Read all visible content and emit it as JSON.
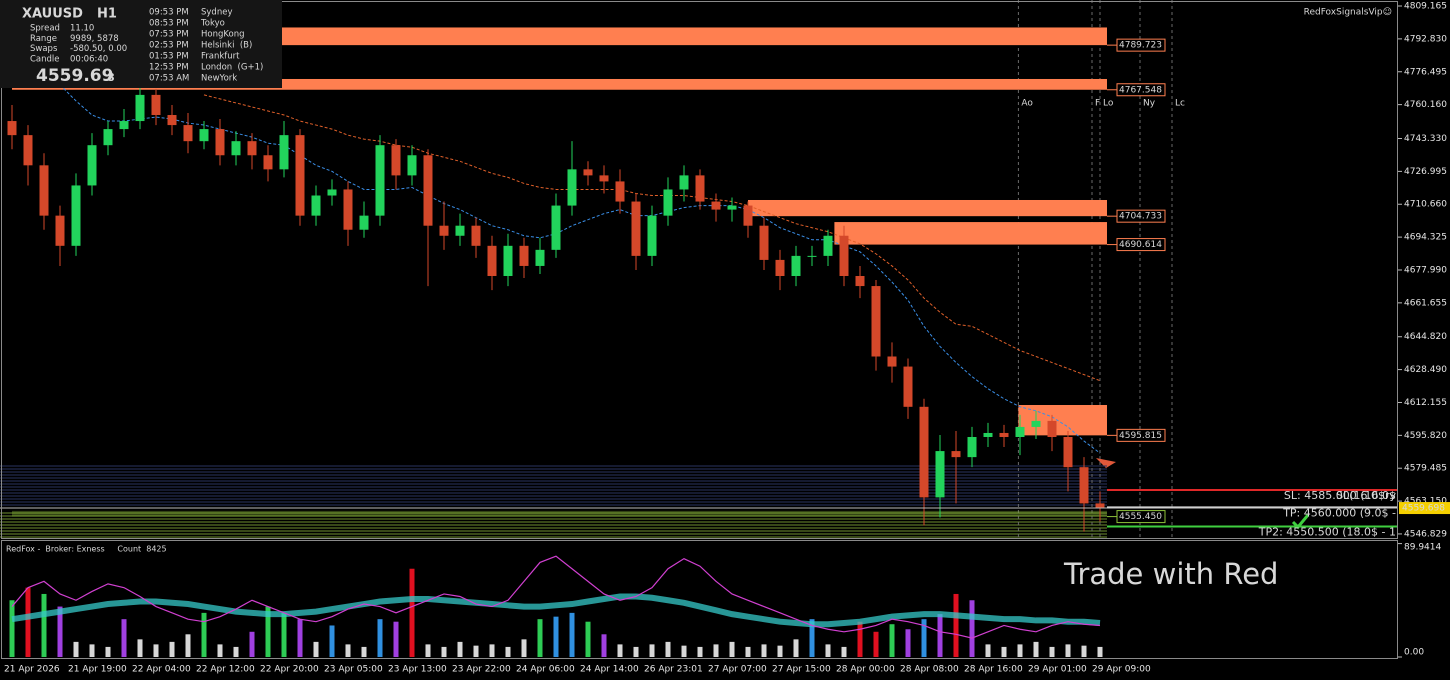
{
  "chart_data": [
    {
      "type": "candlestick",
      "categories": [
        "21 Apr 2026",
        null,
        null,
        null,
        "21 Apr 19:00",
        null,
        null,
        null,
        "22 Apr 04:00",
        null,
        null,
        null,
        "22 Apr 12:00",
        null,
        null,
        null,
        "22 Apr 20:00",
        null,
        null,
        null,
        "23 Apr 05:00",
        null,
        null,
        null,
        "23 Apr 13:00",
        null,
        null,
        null,
        "23 Apr 22:00",
        null,
        null,
        null,
        "24 Apr 06:00",
        null,
        null,
        null,
        "24 Apr 14:00",
        null,
        null,
        null,
        "26 Apr 23:01",
        null,
        null,
        null,
        "27 Apr 07:00",
        null,
        null,
        null,
        "27 Apr 15:00",
        null,
        null,
        null,
        "28 Apr 00:00",
        null,
        null,
        null,
        "28 Apr 08:00",
        null,
        null,
        null,
        "28 Apr 16:00",
        null,
        null,
        null,
        "29 Apr 01:00",
        null,
        null,
        null,
        "29 Apr 09:00"
      ],
      "open": [
        4752,
        4745,
        4730,
        4705,
        4690,
        4720,
        4740,
        4748,
        4752,
        4765,
        4755,
        4750,
        4742,
        4748,
        4735,
        4742,
        4735,
        4728,
        4745,
        4705,
        4715,
        4718,
        4698,
        4705,
        4740,
        4725,
        4735,
        4700,
        4695,
        4700,
        4690,
        4675,
        4690,
        4680,
        4688,
        4710,
        4728,
        4725,
        4722,
        4712,
        4685,
        4705,
        4718,
        4725,
        4712,
        4708,
        4710,
        4700,
        4683,
        4675,
        4685,
        4685,
        4695,
        4675,
        4670,
        4635,
        4630,
        4610,
        4565,
        4588,
        4585,
        4595,
        4597,
        4595,
        4600,
        4603,
        4595,
        4580,
        4562
      ],
      "high": [
        4760,
        4750,
        4736,
        4710,
        4726,
        4746,
        4752,
        4758,
        4772,
        4768,
        4760,
        4756,
        4752,
        4753,
        4747,
        4746,
        4740,
        4752,
        4748,
        4720,
        4723,
        4722,
        4712,
        4745,
        4743,
        4740,
        4738,
        4712,
        4706,
        4704,
        4695,
        4696,
        4694,
        4694,
        4716,
        4742,
        4732,
        4730,
        4728,
        4716,
        4710,
        4724,
        4730,
        4728,
        4716,
        4714,
        4712,
        4704,
        4688,
        4690,
        4690,
        4698,
        4700,
        4680,
        4673,
        4642,
        4634,
        4614,
        4596,
        4598,
        4600,
        4602,
        4601,
        4606,
        4608,
        4606,
        4598,
        4585,
        4568
      ],
      "low": [
        4738,
        4720,
        4698,
        4680,
        4685,
        4715,
        4735,
        4744,
        4748,
        4750,
        4745,
        4736,
        4738,
        4730,
        4730,
        4728,
        4722,
        4724,
        4700,
        4700,
        4710,
        4690,
        4694,
        4700,
        4718,
        4720,
        4670,
        4688,
        4690,
        4684,
        4668,
        4670,
        4674,
        4676,
        4684,
        4705,
        4720,
        4716,
        4706,
        4678,
        4680,
        4700,
        4712,
        4708,
        4702,
        4702,
        4694,
        4678,
        4668,
        4670,
        4680,
        4680,
        4670,
        4664,
        4628,
        4622,
        4604,
        4551,
        4555,
        4562,
        4580,
        4590,
        4590,
        4586,
        4594,
        4588,
        4568,
        4548,
        4553
      ],
      "close": [
        4745,
        4730,
        4705,
        4690,
        4720,
        4740,
        4748,
        4752,
        4765,
        4755,
        4750,
        4742,
        4748,
        4735,
        4742,
        4735,
        4728,
        4745,
        4705,
        4715,
        4718,
        4698,
        4705,
        4740,
        4725,
        4735,
        4700,
        4695,
        4700,
        4690,
        4675,
        4690,
        4680,
        4688,
        4710,
        4728,
        4725,
        4722,
        4712,
        4685,
        4705,
        4718,
        4725,
        4712,
        4708,
        4710,
        4700,
        4683,
        4675,
        4685,
        4685,
        4695,
        4675,
        4670,
        4635,
        4630,
        4610,
        4565,
        4588,
        4585,
        4595,
        4597,
        4595,
        4600,
        4603,
        4595,
        4580,
        4562,
        4559.69
      ],
      "up_color": "#22d35c",
      "down_color": "#d4482a",
      "ylim": [
        4544.81,
        4812.15
      ],
      "yticks": [
        4809.165,
        {
          "value": 4792.83,
          "label": "4792.830"
        },
        4776.495,
        {
          "value": 4760.16,
          "label": "4760.160"
        },
        {
          "value": 4743.33,
          "label": "4743.330"
        },
        4726.995,
        {
          "value": 4710.66,
          "label": "4710.660"
        },
        4694.325,
        {
          "value": 4677.99,
          "label": "4677.990"
        },
        4661.655,
        {
          "value": 4644.82,
          "label": "4644.820"
        },
        {
          "value": 4628.49,
          "label": "4628.490"
        },
        4612.155,
        {
          "value": 4595.82,
          "label": "4595.820"
        },
        4579.485,
        {
          "value": 4563.15,
          "label": "4563.150"
        },
        4546.829
      ],
      "last_price": 4559.698,
      "moving_averages": [
        {
          "color": "#3a8ee6",
          "values": [
            null,
            null,
            null,
            4770,
            4762,
            4755,
            4752,
            4752,
            4753,
            4754,
            4753,
            4751,
            4750,
            4748,
            4746,
            4744,
            4741,
            4740,
            4735,
            4730,
            4727,
            4722,
            4718,
            4718,
            4718,
            4719,
            4715,
            4711,
            4708,
            4704,
            4700,
            4698,
            4695,
            4694,
            4696,
            4700,
            4703,
            4706,
            4708,
            4705,
            4705,
            4707,
            4709,
            4710,
            4710,
            4710,
            4708,
            4704,
            4699,
            4696,
            4693,
            4693,
            4690,
            4687,
            4680,
            4672,
            4663,
            4650,
            4640,
            4632,
            4625,
            4619,
            4614,
            4610,
            4608,
            4605,
            4600,
            4593,
            4587
          ]
        },
        {
          "color": "#e0602a",
          "values": [
            null,
            null,
            null,
            null,
            null,
            null,
            null,
            null,
            null,
            null,
            null,
            null,
            4765,
            4763,
            4761,
            4759,
            4757,
            4755,
            4752,
            4750,
            4748,
            4745,
            4743,
            4742,
            4740,
            4739,
            4736,
            4734,
            4732,
            4729,
            4726,
            4724,
            4721,
            4719,
            4718,
            4718,
            4718,
            4718,
            4718,
            4716,
            4715,
            4715,
            4715,
            4714,
            4713,
            4712,
            4710,
            4707,
            4704,
            4701,
            4699,
            4697,
            4694,
            4691,
            4686,
            4680,
            4673,
            4664,
            4657,
            4651,
            4650,
            4646,
            4642,
            4638,
            4635,
            4632,
            4629,
            4626,
            4623
          ]
        }
      ],
      "zones": [
        {
          "start": 0,
          "top": 4798.5,
          "bottom": 4789.723,
          "color": "#ff7f50"
        },
        {
          "start": 0,
          "top": 4772.9,
          "bottom": 4767.548,
          "color": "#ff7f50"
        },
        {
          "start": 46,
          "top": 4712.77,
          "bottom": 4704.733,
          "color": "#ff7f50"
        },
        {
          "start": 51.4,
          "top": 4701.8,
          "bottom": 4690.614,
          "color": "#ff7f50"
        },
        {
          "start": 62.9,
          "top": 4610.9,
          "bottom": 4595.815,
          "color": "#ff7f50"
        },
        {
          "start": 0,
          "top": 4558.3,
          "bottom": {
            "value": 4555.45,
            "label": "4555.450"
          },
          "color": "#8fc43a"
        }
      ],
      "levels": [
        {
          "price": 4568.66,
          "label": "SL: 4585.000 (16.0$",
          "overlap": "SL(16.0$ry",
          "color": "#e02828",
          "text_color": "#f0f0f0"
        },
        {
          "price": 4560,
          "label": "TP: 4560.000 (9.0$ -",
          "color": "#d0d0d0",
          "text_color": "#3fcf3f"
        },
        {
          "price": 4550.5,
          "label": "TP2: 4550.500 (18.0$ - 1",
          "color": "#3fcf3f",
          "text_color": "#f0f0f0"
        }
      ],
      "session_markers": [
        {
          "label": "Ao",
          "at": 62.9
        },
        {
          "label": "F",
          "at": 67.5
        },
        {
          "label": "Lo",
          "at": 68
        },
        {
          "label": "Ny",
          "at": 70.5
        },
        {
          "label": "Lc",
          "at": 72.5
        }
      ],
      "watermark": "RedFoxSignalsVip☺"
    },
    {
      "type": "indicator",
      "title": "RedFox -  Broker: Exness     Count  8425",
      "annotation": "Trade with Red",
      "ylim": [
        0,
        92
      ],
      "yticks": [
        89.9414,
        {
          "value": 0,
          "label": "0.00"
        }
      ],
      "histogram": {
        "values": [
          45,
          55,
          50,
          40,
          12,
          10,
          8,
          30,
          14,
          10,
          12,
          18,
          35,
          10,
          8,
          20,
          40,
          35,
          30,
          12,
          25,
          10,
          8,
          30,
          28,
          70,
          10,
          8,
          12,
          9,
          10,
          8,
          14,
          30,
          32,
          35,
          28,
          18,
          10,
          8,
          10,
          12,
          9,
          8,
          10,
          12,
          8,
          10,
          9,
          14,
          30,
          10,
          8,
          28,
          20,
          26,
          22,
          30,
          34,
          50,
          45,
          10,
          8,
          10,
          12,
          8,
          10,
          9,
          8
        ],
        "colors": [
          "#2ecc55",
          "#e01020",
          "#2ecc55",
          "#a040e0",
          "#d8d8d8",
          "#d8d8d8",
          "#d8d8d8",
          "#a040e0",
          "#d8d8d8",
          "#d8d8d8",
          "#d8d8d8",
          "#d8d8d8",
          "#2ecc55",
          "#d8d8d8",
          "#d8d8d8",
          "#a040e0",
          "#2ecc55",
          "#2ecc55",
          "#a040e0",
          "#d8d8d8",
          "#3090e0",
          "#d8d8d8",
          "#d8d8d8",
          "#3090e0",
          "#a040e0",
          "#e01020",
          "#d8d8d8",
          "#d8d8d8",
          "#d8d8d8",
          "#d8d8d8",
          "#d8d8d8",
          "#d8d8d8",
          "#d8d8d8",
          "#2ecc55",
          "#3090e0",
          "#3090e0",
          "#2ecc55",
          "#a040e0",
          "#d8d8d8",
          "#d8d8d8",
          "#d8d8d8",
          "#d8d8d8",
          "#d8d8d8",
          "#d8d8d8",
          "#d8d8d8",
          "#d8d8d8",
          "#d8d8d8",
          "#d8d8d8",
          "#d8d8d8",
          "#d8d8d8",
          "#3090e0",
          "#d8d8d8",
          "#d8d8d8",
          "#e01020",
          "#e01020",
          "#2ecc55",
          "#a040e0",
          "#3090e0",
          "#a040e0",
          "#e01020",
          "#a040e0",
          "#d8d8d8",
          "#d8d8d8",
          "#d8d8d8",
          "#d8d8d8",
          "#d8d8d8",
          "#d8d8d8",
          "#d8d8d8",
          "#d8d8d8"
        ]
      },
      "series": [
        {
          "color": "#35c8c8",
          "values": [
            30,
            32,
            34,
            36,
            38,
            40,
            42,
            43,
            44,
            44,
            43,
            42,
            40,
            38,
            36,
            35,
            34,
            34,
            35,
            36,
            38,
            40,
            42,
            44,
            45,
            46,
            46,
            45,
            44,
            43,
            42,
            41,
            40,
            40,
            41,
            42,
            44,
            46,
            48,
            48,
            47,
            45,
            43,
            40,
            37,
            34,
            32,
            30,
            28,
            27,
            26,
            26,
            27,
            28,
            30,
            32,
            33,
            34,
            34,
            33,
            32,
            31,
            30,
            30,
            29,
            29,
            28,
            28,
            27
          ]
        },
        {
          "color": "#d040d0",
          "values": [
            40,
            55,
            60,
            50,
            45,
            52,
            58,
            55,
            48,
            40,
            35,
            30,
            28,
            32,
            38,
            45,
            40,
            35,
            30,
            28,
            32,
            38,
            42,
            40,
            35,
            40,
            45,
            50,
            48,
            42,
            40,
            45,
            60,
            75,
            80,
            70,
            60,
            50,
            45,
            48,
            55,
            70,
            78,
            72,
            60,
            50,
            45,
            40,
            35,
            30,
            25,
            22,
            20,
            22,
            25,
            30,
            28,
            25,
            20,
            18,
            15,
            20,
            25,
            22,
            20,
            25,
            28,
            26,
            25
          ]
        }
      ]
    }
  ],
  "info": {
    "symbol": "XAUUSD",
    "timeframe": "H1",
    "rows": [
      {
        "label": "Spread",
        "value": "11.10"
      },
      {
        "label": "Range",
        "value": "9989, 5878"
      },
      {
        "label": "Swaps",
        "value": "-580.50, 0.00"
      },
      {
        "label": "Candle",
        "value": "00:06:40"
      }
    ],
    "price": "4559.69",
    "price_digit": "8",
    "sessions": [
      {
        "time": "09:53 PM",
        "name": "Sydney",
        "color": "#9a9a9a"
      },
      {
        "time": "08:53 PM",
        "name": "Tokyo",
        "color": "#9a9a9a"
      },
      {
        "time": "07:53 PM",
        "name": "HongKong",
        "color": "#9a9a9a"
      },
      {
        "time": "02:53 PM",
        "name": "Helsinki  (B)",
        "color": "#3fcf3f"
      },
      {
        "time": "01:53 PM",
        "name": "Frankfurt",
        "color": "#3fcf3f"
      },
      {
        "time": "12:53 PM",
        "name": "London  (G+1)",
        "color": "#3fcf3f"
      },
      {
        "time": "07:53 AM",
        "name": "NewYork",
        "color": "#9a9a9a"
      }
    ]
  }
}
